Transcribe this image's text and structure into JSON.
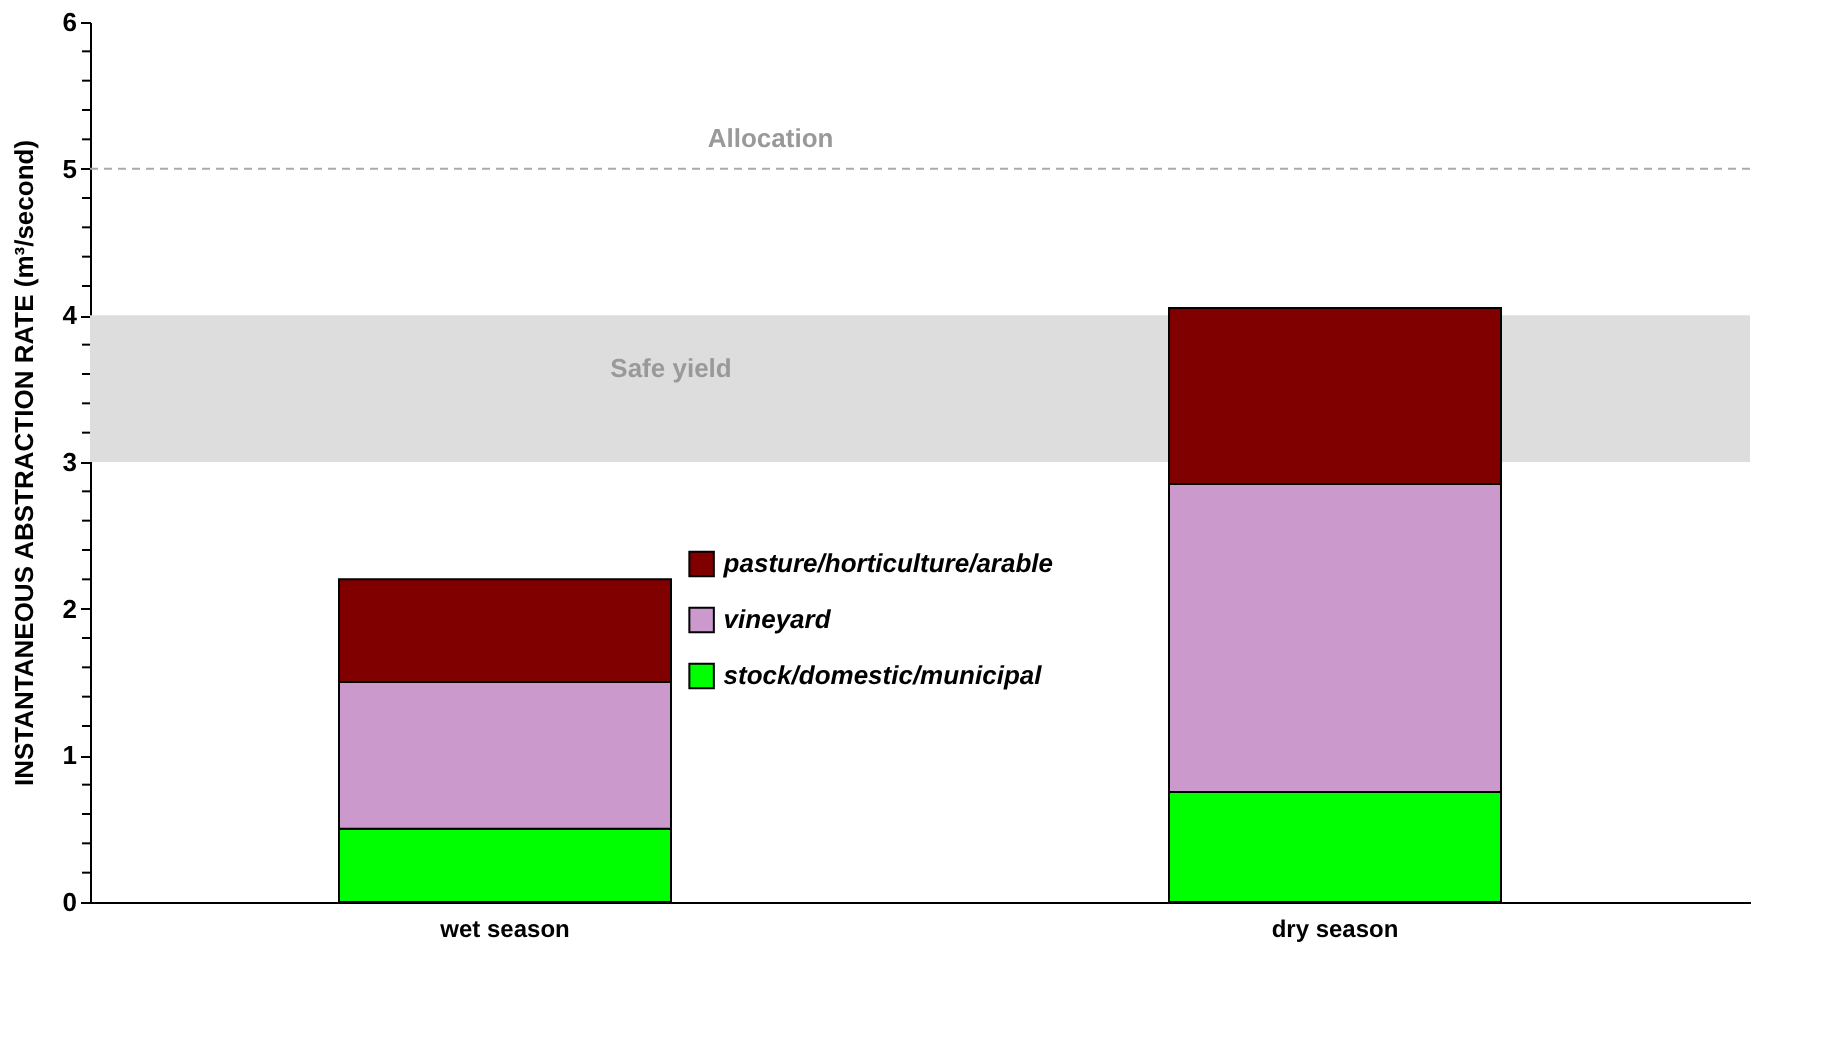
{
  "chart_data": {
    "type": "bar",
    "stacked": true,
    "ylabel": "INSTANTANEOUS ABSTRACTION RATE (m³/second)",
    "categories": [
      "wet season",
      "dry season"
    ],
    "series": [
      {
        "name": "stock/domestic/municipal",
        "color": "#00ff00",
        "values": [
          0.5,
          0.75
        ]
      },
      {
        "name": "vineyard",
        "color": "#cc99cc",
        "values": [
          1.0,
          2.1
        ]
      },
      {
        "name": "pasture/horticulture/arable",
        "color": "#800000",
        "values": [
          0.7,
          1.2
        ]
      }
    ],
    "ylim": [
      0,
      6
    ],
    "yticks": [
      0,
      {
        "value": 0.2,
        "label": null
      },
      {
        "value": 0.4,
        "label": null
      },
      {
        "value": 0.6,
        "label": null
      },
      {
        "value": 0.8,
        "label": null
      },
      1,
      {
        "value": 1.2,
        "label": null
      },
      {
        "value": 1.4,
        "label": null
      },
      {
        "value": 1.6,
        "label": null
      },
      {
        "value": 1.8,
        "label": null
      },
      2,
      {
        "value": 2.2,
        "label": null
      },
      {
        "value": 2.4,
        "label": null
      },
      {
        "value": 2.6,
        "label": null
      },
      {
        "value": 2.8,
        "label": null
      },
      3,
      {
        "value": 3.2,
        "label": null
      },
      {
        "value": 3.4,
        "label": null
      },
      {
        "value": 3.6,
        "label": null
      },
      {
        "value": 3.8,
        "label": null
      },
      4,
      {
        "value": 4.2,
        "label": null
      },
      {
        "value": 4.4,
        "label": null
      },
      {
        "value": 4.6,
        "label": null
      },
      {
        "value": 4.8,
        "label": null
      },
      5,
      {
        "value": 5.2,
        "label": null
      },
      {
        "value": 5.4,
        "label": null
      },
      {
        "value": 5.6,
        "label": null
      },
      {
        "value": 5.8,
        "label": null
      },
      6
    ],
    "ref_lines": [
      {
        "axis": "y",
        "value": 5,
        "label": "Allocation",
        "color": "#aaaaaa",
        "line_style": "dashed"
      }
    ],
    "bands": [
      {
        "axis": "y",
        "from": 3,
        "to": 4,
        "label": "Safe yield",
        "color": "#dddddd"
      }
    ],
    "grid": false,
    "legend": "center"
  }
}
